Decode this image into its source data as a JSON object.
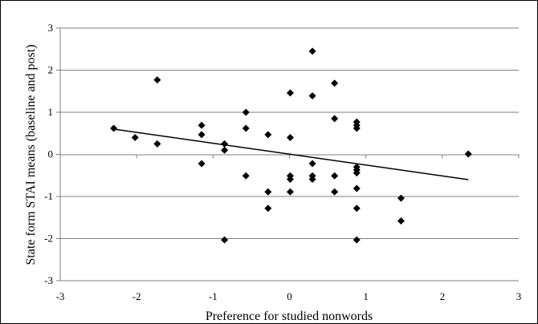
{
  "chart_data": {
    "type": "scatter",
    "title": "",
    "xlabel": "Preference for studied nonwords",
    "ylabel": "State form STAI means (baseline and post)",
    "xlim": [
      -3,
      3
    ],
    "ylim": [
      -3,
      3
    ],
    "x_ticks": [
      "-3",
      "-2",
      "-1",
      "0",
      "1",
      "2",
      "3"
    ],
    "y_ticks": [
      "3",
      "2",
      "1",
      "0",
      "-1",
      "-2",
      "-3"
    ],
    "grid": "horizontal",
    "legend": "none",
    "marker": "diamond",
    "marker_color": "#000000",
    "points": [
      [
        -2.3,
        0.62
      ],
      [
        -2.02,
        0.4
      ],
      [
        -1.73,
        1.77
      ],
      [
        -1.73,
        0.25
      ],
      [
        -1.15,
        0.69
      ],
      [
        -1.15,
        0.47
      ],
      [
        -1.15,
        -0.22
      ],
      [
        -0.85,
        0.25
      ],
      [
        -0.85,
        0.1
      ],
      [
        -0.85,
        -2.03
      ],
      [
        -0.57,
        1.0
      ],
      [
        -0.57,
        0.62
      ],
      [
        -0.57,
        -0.51
      ],
      [
        -0.28,
        0.47
      ],
      [
        -0.28,
        -0.89
      ],
      [
        -0.28,
        -1.28
      ],
      [
        0.01,
        1.46
      ],
      [
        0.01,
        0.4
      ],
      [
        0.01,
        -0.51
      ],
      [
        0.01,
        -0.59
      ],
      [
        0.01,
        -0.89
      ],
      [
        0.3,
        2.45
      ],
      [
        0.3,
        1.39
      ],
      [
        0.3,
        -0.22
      ],
      [
        0.3,
        -0.51
      ],
      [
        0.3,
        -0.59
      ],
      [
        0.59,
        1.69
      ],
      [
        0.59,
        0.85
      ],
      [
        0.59,
        -0.51
      ],
      [
        0.59,
        -0.89
      ],
      [
        0.88,
        0.77
      ],
      [
        0.88,
        0.69
      ],
      [
        0.88,
        0.62
      ],
      [
        0.88,
        -0.3
      ],
      [
        0.88,
        -0.37
      ],
      [
        0.88,
        -0.44
      ],
      [
        0.88,
        -0.81
      ],
      [
        0.88,
        -1.28
      ],
      [
        0.88,
        -2.03
      ],
      [
        1.46,
        -1.04
      ],
      [
        1.46,
        -1.58
      ],
      [
        2.34,
        0.01
      ]
    ],
    "trendline": {
      "x": [
        -2.3,
        2.34
      ],
      "y": [
        0.6,
        -0.6
      ]
    }
  }
}
